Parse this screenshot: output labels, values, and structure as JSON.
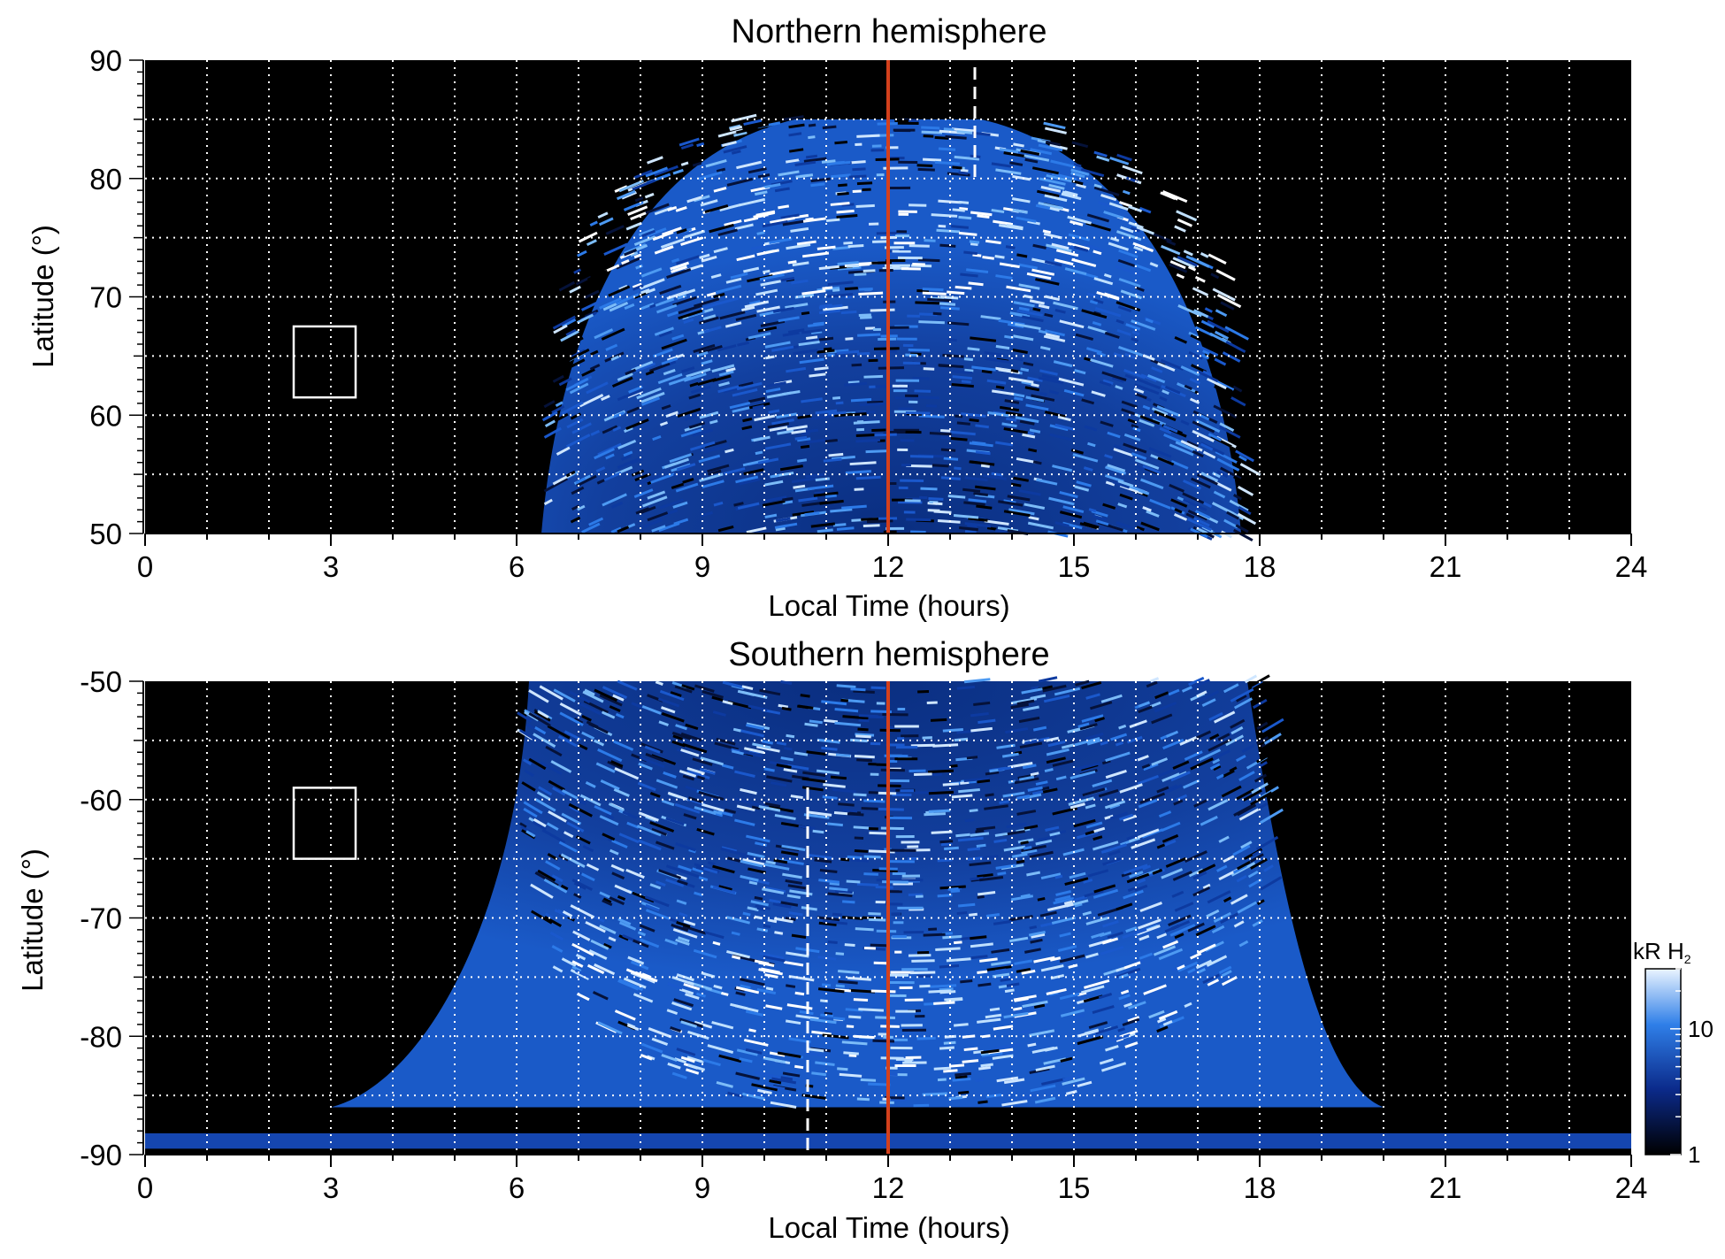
{
  "chart_data": [
    {
      "type": "heatmap",
      "title": "Northern hemisphere",
      "xlabel": "Local Time (hours)",
      "ylabel": "Latitude (°)",
      "xlim": [
        0,
        24
      ],
      "ylim": [
        50,
        90
      ],
      "xticks": [
        "0",
        "3",
        "6",
        "9",
        "12",
        "15",
        "18",
        "21",
        "24"
      ],
      "yticks": [
        "50",
        "60",
        "70",
        "80",
        "90"
      ],
      "grid": true,
      "noon_line_x": 12,
      "dashed_line_x": 13.4,
      "coverage_lt": [
        6.4,
        17.7
      ],
      "box": {
        "x": [
          2.4,
          3.4
        ],
        "y": [
          61.5,
          67.5
        ]
      }
    },
    {
      "type": "heatmap",
      "title": "Southern hemisphere",
      "xlabel": "Local Time (hours)",
      "ylabel": "Latitude (°)",
      "xlim": [
        0,
        24
      ],
      "ylim": [
        -90,
        -50
      ],
      "xticks": [
        "0",
        "3",
        "6",
        "9",
        "12",
        "15",
        "18",
        "21",
        "24"
      ],
      "yticks": [
        "-90",
        "-80",
        "-70",
        "-60",
        "-50"
      ],
      "grid": true,
      "noon_line_x": 12,
      "dashed_line_x": 10.7,
      "coverage_lt": [
        6.0,
        18.2
      ],
      "box": {
        "x": [
          2.4,
          3.4
        ],
        "y": [
          -65,
          -59
        ]
      }
    }
  ],
  "colorbar": {
    "label_main": "kR H",
    "label_sub": "2",
    "ticks": [
      "1",
      "10"
    ],
    "scale": "log",
    "range": [
      1,
      30
    ]
  },
  "colors": {
    "background": "#000000",
    "noon_line": "#d4401c",
    "grid": "#ffffff",
    "emission_low": "#0a2a7a",
    "emission_mid": "#1e6fe0",
    "emission_high": "#ffffff"
  }
}
